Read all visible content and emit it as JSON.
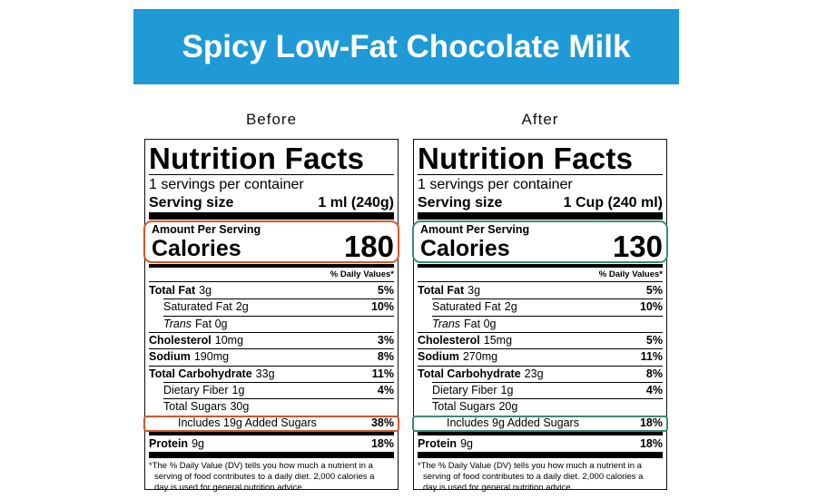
{
  "header": {
    "title": "Spicy Low-Fat Chocolate Milk"
  },
  "panels": [
    {
      "label": "Before",
      "title": "Nutrition Facts",
      "servings": "1 servings per container",
      "serving_size_label": "Serving size",
      "serving_size_value": "1 ml (240g)",
      "amount_per_serving": "Amount Per Serving",
      "calories_label": "Calories",
      "calories": 180,
      "dv_header": "% Daily Values*",
      "rows": [
        {
          "name": "Total Fat",
          "amount": "3g",
          "dv": "5%"
        },
        {
          "name": "Saturated Fat",
          "amount": "2g",
          "dv": "10%"
        },
        {
          "name": "Trans",
          "amount": "Fat 0g"
        },
        {
          "name": "Cholesterol",
          "amount": "10mg",
          "dv": "3%"
        },
        {
          "name": "Sodium",
          "amount": "190mg",
          "dv": "8%"
        },
        {
          "name": "Total Carbohydrate",
          "amount": "33g",
          "dv": "11%"
        },
        {
          "name": "Dietary Fiber",
          "amount": "1g",
          "dv": "4%"
        },
        {
          "name": "Total Sugars",
          "amount": "30g"
        },
        {
          "name": "Includes 19g Added Sugars",
          "dv": "38%"
        },
        {
          "name": "Protein",
          "amount": "9g",
          "dv": "18%"
        }
      ],
      "footnote": [
        "*The % Daily Value (DV) tells you how much a nutrient in a",
        "serving of food contributes to a daily diet. 2,000 calories a",
        "day is used for general nutrition advice."
      ]
    },
    {
      "label": "After",
      "title": "Nutrition Facts",
      "servings": "1 servings per container",
      "serving_size_label": "Serving size",
      "serving_size_value": "1 Cup (240 ml)",
      "amount_per_serving": "Amount Per Serving",
      "calories_label": "Calories",
      "calories": 130,
      "dv_header": "% Daily Values*",
      "rows": [
        {
          "name": "Total Fat",
          "amount": "3g",
          "dv": "5%"
        },
        {
          "name": "Saturated Fat",
          "amount": "2g",
          "dv": "10%"
        },
        {
          "name": "Trans",
          "amount": "Fat 0g"
        },
        {
          "name": "Cholesterol",
          "amount": "15mg",
          "dv": "5%"
        },
        {
          "name": "Sodium",
          "amount": "270mg",
          "dv": "11%"
        },
        {
          "name": "Total Carbohydrate",
          "amount": "23g",
          "dv": "8%"
        },
        {
          "name": "Dietary Fiber",
          "amount": "1g",
          "dv": "4%"
        },
        {
          "name": "Total Sugars",
          "amount": "20g"
        },
        {
          "name": "Includes 9g Added Sugars",
          "dv": "18%"
        },
        {
          "name": "Protein",
          "amount": "9g",
          "dv": "18%"
        }
      ],
      "footnote": [
        "*The % Daily Value (DV) tells you how much a nutrient in a",
        "serving of food contributes to a daily diet. 2,000 calories a",
        "day is used for general nutrition advice."
      ]
    }
  ]
}
